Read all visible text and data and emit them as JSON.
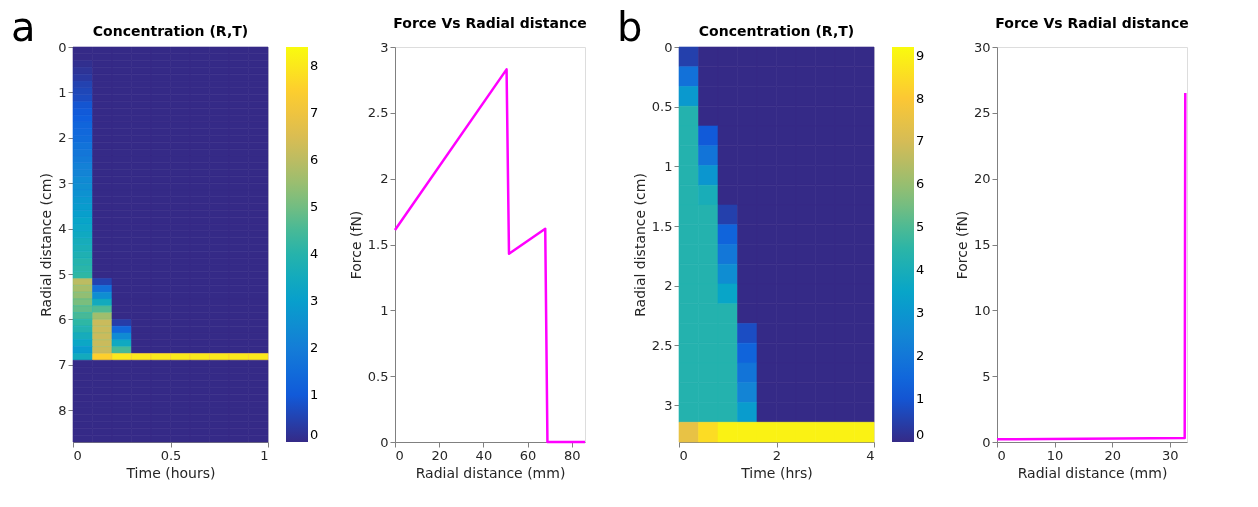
{
  "chart_data": [
    {
      "type": "heatmap",
      "title": "Concentration (R,T)",
      "xlabel": "Time (hours)",
      "ylabel": "Radial distance (cm)",
      "annotations": [
        "a"
      ],
      "xlim": [
        0,
        1
      ],
      "xticks": [
        0,
        0.5,
        1
      ],
      "ylim": [
        8.7,
        0
      ],
      "yticks": [
        0,
        1,
        2,
        3,
        4,
        5,
        6,
        7,
        8
      ],
      "clim": [
        0,
        8.4
      ],
      "cticks": [
        0,
        1,
        2,
        3,
        4,
        5,
        6,
        7,
        8
      ],
      "cells": [
        [
          0,
          0,
          0,
          0,
          0,
          0,
          0,
          0,
          0,
          0
        ],
        [
          0,
          0,
          0,
          0,
          0,
          0,
          0,
          0,
          0,
          0
        ],
        [
          0.1,
          0,
          0,
          0,
          0,
          0,
          0,
          0,
          0,
          0
        ],
        [
          0.2,
          0,
          0,
          0,
          0,
          0,
          0,
          0,
          0,
          0
        ],
        [
          0.3,
          0,
          0,
          0,
          0,
          0,
          0,
          0,
          0,
          0
        ],
        [
          0.5,
          0,
          0,
          0,
          0,
          0,
          0,
          0,
          0,
          0
        ],
        [
          0.6,
          0,
          0,
          0,
          0,
          0,
          0,
          0,
          0,
          0
        ],
        [
          0.7,
          0,
          0,
          0,
          0,
          0,
          0,
          0,
          0,
          0
        ],
        [
          0.9,
          0,
          0,
          0,
          0,
          0,
          0,
          0,
          0,
          0
        ],
        [
          1.0,
          0,
          0,
          0,
          0,
          0,
          0,
          0,
          0,
          0
        ],
        [
          1.1,
          0,
          0,
          0,
          0,
          0,
          0,
          0,
          0,
          0
        ],
        [
          1.3,
          0,
          0,
          0,
          0,
          0,
          0,
          0,
          0,
          0
        ],
        [
          1.4,
          0,
          0,
          0,
          0,
          0,
          0,
          0,
          0,
          0
        ],
        [
          1.5,
          0,
          0,
          0,
          0,
          0,
          0,
          0,
          0,
          0
        ],
        [
          1.7,
          0,
          0,
          0,
          0,
          0,
          0,
          0,
          0,
          0
        ],
        [
          1.8,
          0,
          0,
          0,
          0,
          0,
          0,
          0,
          0,
          0
        ],
        [
          1.9,
          0,
          0,
          0,
          0,
          0,
          0,
          0,
          0,
          0
        ],
        [
          2.1,
          0,
          0,
          0,
          0,
          0,
          0,
          0,
          0,
          0
        ],
        [
          2.2,
          0,
          0,
          0,
          0,
          0,
          0,
          0,
          0,
          0
        ],
        [
          2.4,
          0,
          0,
          0,
          0,
          0,
          0,
          0,
          0,
          0
        ],
        [
          2.5,
          0,
          0,
          0,
          0,
          0,
          0,
          0,
          0,
          0
        ],
        [
          2.6,
          0,
          0,
          0,
          0,
          0,
          0,
          0,
          0,
          0
        ],
        [
          2.8,
          0,
          0,
          0,
          0,
          0,
          0,
          0,
          0,
          0
        ],
        [
          2.9,
          0,
          0,
          0,
          0,
          0,
          0,
          0,
          0,
          0
        ],
        [
          3.0,
          0,
          0,
          0,
          0,
          0,
          0,
          0,
          0,
          0
        ],
        [
          3.2,
          0,
          0,
          0,
          0,
          0,
          0,
          0,
          0,
          0
        ],
        [
          3.3,
          0,
          0,
          0,
          0,
          0,
          0,
          0,
          0,
          0
        ],
        [
          3.4,
          0,
          0,
          0,
          0,
          0,
          0,
          0,
          0,
          0
        ],
        [
          3.6,
          0,
          0,
          0,
          0,
          0,
          0,
          0,
          0,
          0
        ],
        [
          3.7,
          0,
          0,
          0,
          0,
          0,
          0,
          0,
          0,
          0
        ],
        [
          3.8,
          0,
          0,
          0,
          0,
          0,
          0,
          0,
          0,
          0
        ],
        [
          4.0,
          0,
          0,
          0,
          0,
          0,
          0,
          0,
          0,
          0
        ],
        [
          4.1,
          0,
          0,
          0,
          0,
          0,
          0,
          0,
          0,
          0
        ],
        [
          4.2,
          0,
          0,
          0,
          0,
          0,
          0,
          0,
          0,
          0
        ],
        [
          6.0,
          0.5,
          0,
          0,
          0,
          0,
          0,
          0,
          0,
          0
        ],
        [
          5.7,
          1.6,
          0,
          0,
          0,
          0,
          0,
          0,
          0,
          0
        ],
        [
          5.4,
          2.5,
          0,
          0,
          0,
          0,
          0,
          0,
          0,
          0
        ],
        [
          5.1,
          3.5,
          0,
          0,
          0,
          0,
          0,
          0,
          0,
          0
        ],
        [
          4.8,
          4.6,
          0,
          0,
          0,
          0,
          0,
          0,
          0,
          0
        ],
        [
          4.5,
          5.6,
          0,
          0,
          0,
          0,
          0,
          0,
          0,
          0
        ],
        [
          4.2,
          6.2,
          0.4,
          0,
          0,
          0,
          0,
          0,
          0,
          0
        ],
        [
          3.9,
          6.2,
          1.4,
          0,
          0,
          0,
          0,
          0,
          0,
          0
        ],
        [
          3.6,
          6.2,
          2.4,
          0,
          0,
          0,
          0,
          0,
          0,
          0
        ],
        [
          3.3,
          6.2,
          3.4,
          0,
          0,
          0,
          0,
          0,
          0,
          0
        ],
        [
          2.9,
          6.2,
          4.5,
          0,
          0,
          0,
          0,
          0,
          0,
          0
        ],
        [
          3.5,
          7.5,
          8,
          8,
          8,
          8,
          8,
          8,
          8,
          8
        ],
        [
          0,
          0,
          0,
          0,
          0,
          0,
          0,
          0,
          0,
          0
        ],
        [
          0,
          0,
          0,
          0,
          0,
          0,
          0,
          0,
          0,
          0
        ],
        [
          0,
          0,
          0,
          0,
          0,
          0,
          0,
          0,
          0,
          0
        ],
        [
          0,
          0,
          0,
          0,
          0,
          0,
          0,
          0,
          0,
          0
        ],
        [
          0,
          0,
          0,
          0,
          0,
          0,
          0,
          0,
          0,
          0
        ],
        [
          0,
          0,
          0,
          0,
          0,
          0,
          0,
          0,
          0,
          0
        ],
        [
          0,
          0,
          0,
          0,
          0,
          0,
          0,
          0,
          0,
          0
        ],
        [
          0,
          0,
          0,
          0,
          0,
          0,
          0,
          0,
          0,
          0
        ],
        [
          0,
          0,
          0,
          0,
          0,
          0,
          0,
          0,
          0,
          0
        ],
        [
          0,
          0,
          0,
          0,
          0,
          0,
          0,
          0,
          0,
          0
        ],
        [
          0,
          0,
          0,
          0,
          0,
          0,
          0,
          0,
          0,
          0
        ],
        [
          0,
          0,
          0,
          0,
          0,
          0,
          0,
          0,
          0,
          0
        ]
      ]
    },
    {
      "type": "line",
      "title": "Force Vs Radial distance",
      "xlabel": "Radial distance (mm)",
      "ylabel": "Force (fN)",
      "x": [
        0,
        50.5,
        51.6,
        68,
        69,
        86
      ],
      "series": [
        {
          "color": "#ff00ff",
          "values": [
            1.61,
            2.83,
            1.43,
            1.62,
            0,
            0
          ]
        }
      ],
      "xlim": [
        0,
        86
      ],
      "xticks": [
        0,
        20,
        40,
        60,
        80
      ],
      "ylim": [
        0,
        3
      ],
      "yticks": [
        0,
        0.5,
        1,
        1.5,
        2,
        2.5,
        3
      ]
    },
    {
      "type": "heatmap",
      "title": "Concentration (R,T)",
      "xlabel": "Time (hrs)",
      "ylabel": "Radial distance (cm)",
      "annotations": [
        "b"
      ],
      "xlim": [
        0,
        4
      ],
      "xticks": [
        0,
        2,
        4
      ],
      "ylim": [
        3.31,
        0
      ],
      "yticks": [
        0,
        0.5,
        1,
        1.5,
        2,
        2.5,
        3
      ],
      "clim": [
        0,
        9.2
      ],
      "cticks": [
        0,
        1,
        2,
        3,
        4,
        5,
        6,
        7,
        8,
        9
      ],
      "cells": [
        [
          0.5,
          0,
          0,
          0,
          0,
          0,
          0,
          0,
          0,
          0
        ],
        [
          1.8,
          0,
          0,
          0,
          0,
          0,
          0,
          0,
          0,
          0
        ],
        [
          3.1,
          0,
          0,
          0,
          0,
          0,
          0,
          0,
          0,
          0
        ],
        [
          4.3,
          0,
          0,
          0,
          0,
          0,
          0,
          0,
          0,
          0
        ],
        [
          4.3,
          1.1,
          0,
          0,
          0,
          0,
          0,
          0,
          0,
          0
        ],
        [
          4.3,
          1.9,
          0,
          0,
          0,
          0,
          0,
          0,
          0,
          0
        ],
        [
          4.3,
          3.0,
          0,
          0,
          0,
          0,
          0,
          0,
          0,
          0
        ],
        [
          4.3,
          4.0,
          0,
          0,
          0,
          0,
          0,
          0,
          0,
          0
        ],
        [
          4.3,
          4.3,
          0.5,
          0,
          0,
          0,
          0,
          0,
          0,
          0
        ],
        [
          4.3,
          4.3,
          1.4,
          0,
          0,
          0,
          0,
          0,
          0,
          0
        ],
        [
          4.3,
          4.3,
          2.0,
          0,
          0,
          0,
          0,
          0,
          0,
          0
        ],
        [
          4.3,
          4.3,
          2.7,
          0,
          0,
          0,
          0,
          0,
          0,
          0
        ],
        [
          4.3,
          4.3,
          3.5,
          0,
          0,
          0,
          0,
          0,
          0,
          0
        ],
        [
          4.3,
          4.3,
          4.3,
          0,
          0,
          0,
          0,
          0,
          0,
          0
        ],
        [
          4.3,
          4.3,
          4.3,
          0.8,
          0,
          0,
          0,
          0,
          0,
          0
        ],
        [
          4.3,
          4.3,
          4.3,
          1.4,
          0,
          0,
          0,
          0,
          0,
          0
        ],
        [
          4.3,
          4.3,
          4.3,
          1.9,
          0,
          0,
          0,
          0,
          0,
          0
        ],
        [
          4.3,
          4.3,
          4.3,
          2.4,
          0,
          0,
          0,
          0,
          0,
          0
        ],
        [
          4.3,
          4.3,
          4.3,
          3.2,
          0,
          0,
          0,
          0,
          0,
          0
        ],
        [
          7.5,
          8.5,
          9,
          9,
          9,
          9,
          9,
          9,
          9,
          9
        ]
      ]
    },
    {
      "type": "line",
      "title": "Force Vs Radial distance",
      "xlabel": "Radial distance (mm)",
      "ylabel": "Force (fN)",
      "x": [
        0,
        32.6,
        32.7
      ],
      "series": [
        {
          "color": "#ff00ff",
          "values": [
            0.2,
            0.3,
            26.5
          ]
        }
      ],
      "xlim": [
        0,
        33
      ],
      "xticks": [
        0,
        10,
        20,
        30
      ],
      "ylim": [
        0,
        30
      ],
      "yticks": [
        0,
        5,
        10,
        15,
        20,
        25,
        30
      ]
    }
  ]
}
